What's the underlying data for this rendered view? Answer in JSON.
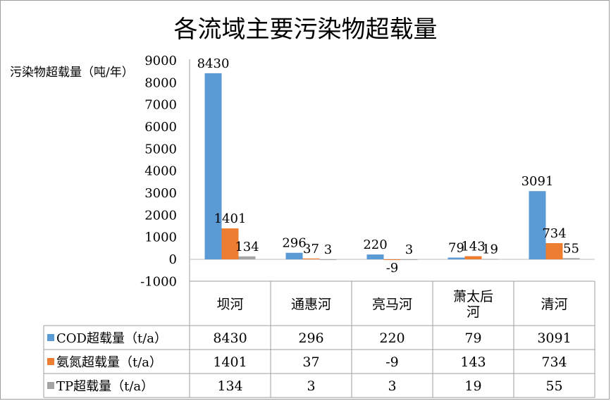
{
  "chart_data": {
    "type": "bar",
    "title": "各流域主要污染物超载量",
    "ylabel": "污染物超载量（吨/年）",
    "xlabel": "",
    "categories": [
      "坝河",
      "通惠河",
      "亮马河",
      "萧太后河",
      "清河"
    ],
    "series": [
      {
        "name": "COD超载量（t/a）",
        "values": [
          8430,
          296,
          220,
          79,
          3091
        ],
        "color": "#5b9bd5"
      },
      {
        "name": "氨氮超载量（t/a）",
        "values": [
          1401,
          37,
          -9,
          143,
          734
        ],
        "color": "#ed7d31"
      },
      {
        "name": "TP超载量（t/a）",
        "values": [
          134,
          3,
          3,
          19,
          55
        ],
        "color": "#a5a5a5"
      }
    ],
    "ylim": [
      -1000,
      9000
    ],
    "yticks": [
      -1000,
      0,
      1000,
      2000,
      3000,
      4000,
      5000,
      6000,
      7000,
      8000,
      9000
    ],
    "grid": false,
    "legend": "data-table"
  }
}
